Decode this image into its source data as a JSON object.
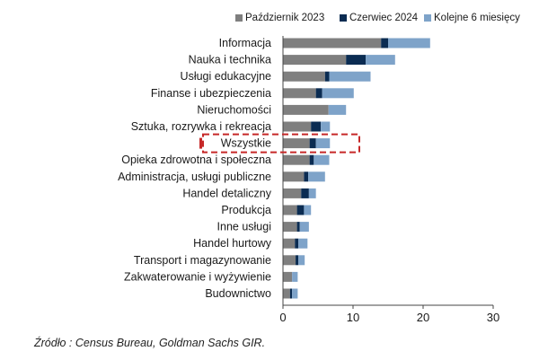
{
  "chart_data": {
    "type": "bar",
    "orientation": "horizontal",
    "stacked": true,
    "categories": [
      "Informacja",
      "Nauka i technika",
      "Usługi edukacyjne",
      "Finanse i  ubezpieczenia",
      "Nieruchomości",
      "Sztuka, rozrywka i rekreacja",
      "Wszystkie",
      "Opieka zdrowotna i społeczna",
      "Administracja, usługi publiczne",
      "Handel detaliczny",
      "Produkcja",
      "Inne usługi",
      "Handel hurtowy",
      "Transport i magazynowanie",
      "Zakwaterowanie i wyżywienie",
      "Budownictwo"
    ],
    "series": [
      {
        "name": "Październik 2023",
        "color": "#7f7f7f",
        "values": [
          14,
          9,
          6,
          4.7,
          6.5,
          4,
          3.8,
          3.8,
          3,
          2.6,
          2,
          2,
          1.7,
          1.8,
          1.3,
          1
        ]
      },
      {
        "name": "Czerwiec 2024",
        "color": "#0b2c52",
        "values": [
          1,
          2.8,
          0.6,
          0.9,
          0,
          1.4,
          0.9,
          0.6,
          0.6,
          1.1,
          1,
          0.4,
          0.5,
          0.4,
          0,
          0.3
        ]
      },
      {
        "name": "Kolejne 6 miesięcy",
        "color": "#7ea3c9",
        "values": [
          6,
          4.2,
          5.9,
          4.5,
          2.5,
          1.3,
          2,
          2.2,
          2.4,
          1,
          1,
          1.3,
          1.3,
          0.9,
          0.8,
          0.8
        ]
      }
    ],
    "xlim": [
      0,
      30
    ],
    "xticks": [
      "0",
      "10",
      "20",
      "30"
    ],
    "highlighted_category": "Wszystkie",
    "legend_position": "top"
  },
  "source": "Źródło : Census Bureau, Goldman Sachs GIR."
}
